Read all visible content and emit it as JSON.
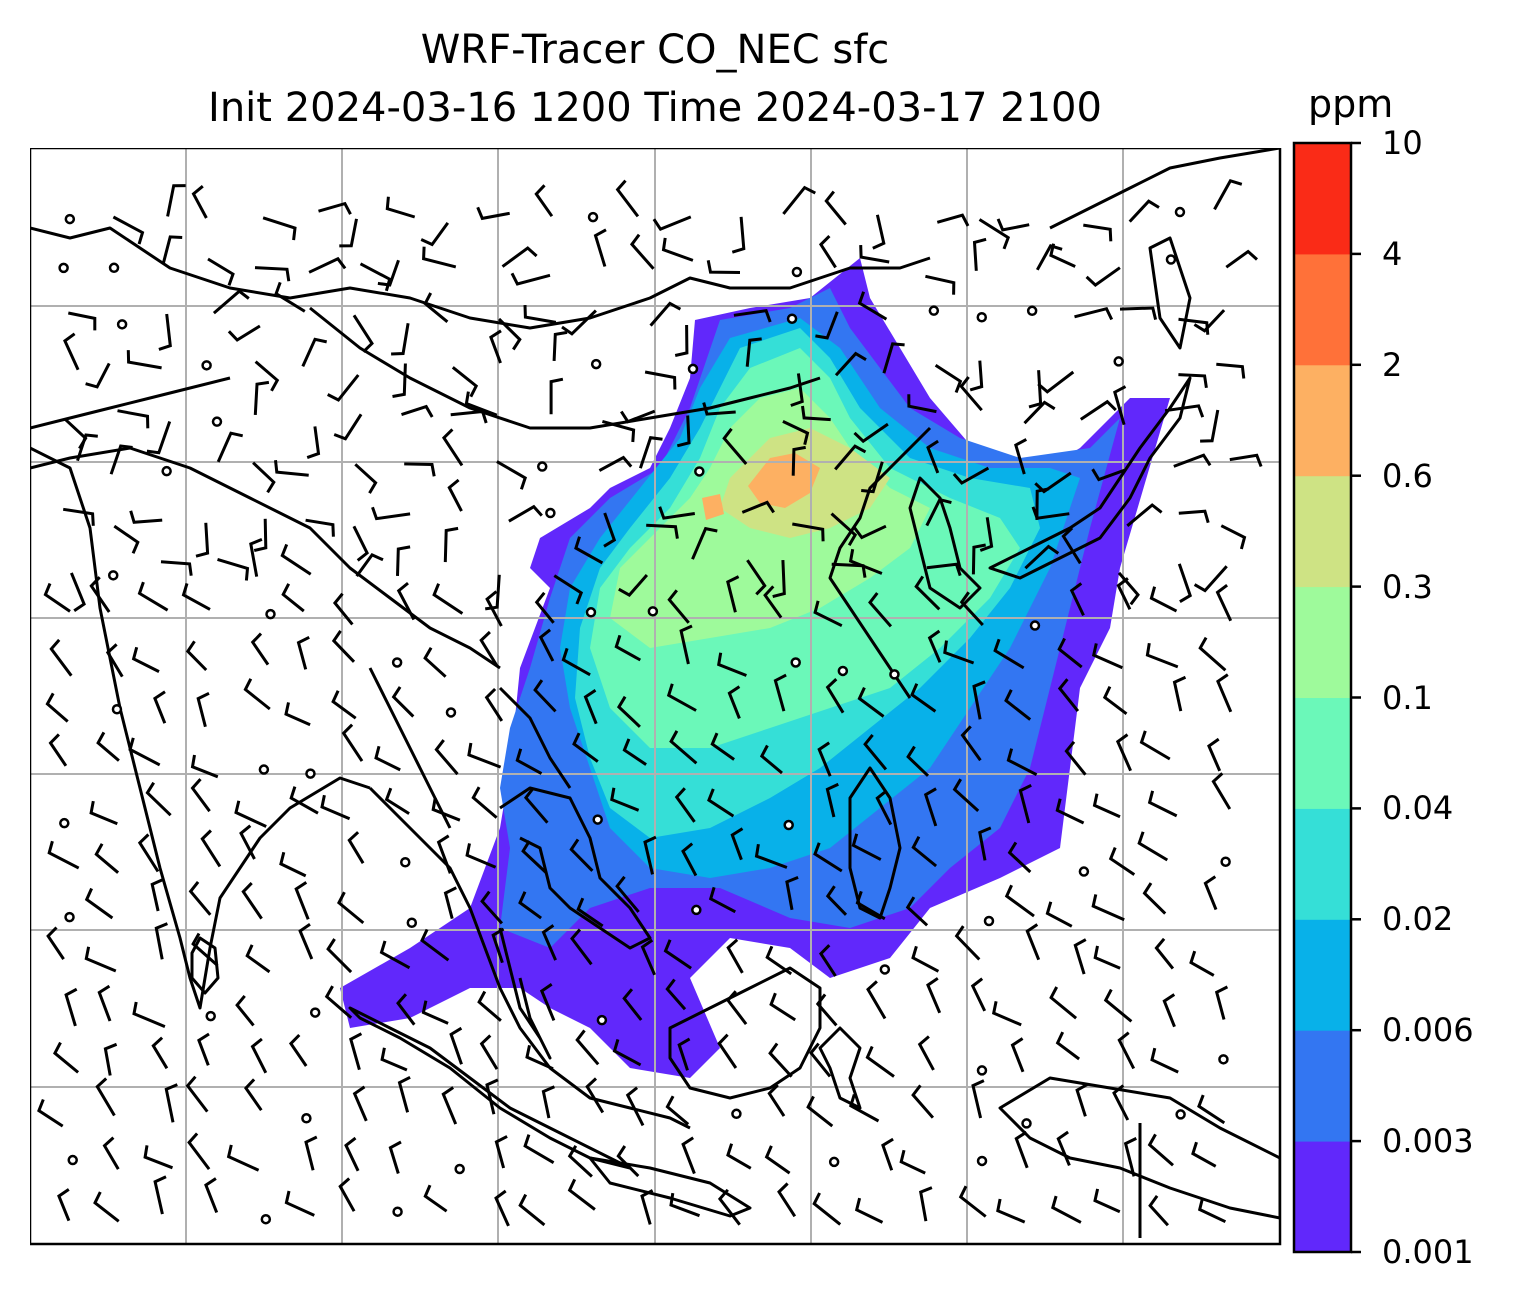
{
  "title": {
    "line1": "WRF-Tracer CO_NEC sfc",
    "line2": "Init 2024-03-16 1200 Time 2024-03-17 2100"
  },
  "colorbar": {
    "unit": "ppm",
    "levels": [
      "0.001",
      "0.003",
      "0.006",
      "0.02",
      "0.04",
      "0.1",
      "0.3",
      "0.6",
      "2",
      "4",
      "10"
    ],
    "colors": [
      "#6128fb",
      "#3376f2",
      "#08b1e9",
      "#35dfd7",
      "#6bf8b9",
      "#9efa9b",
      "#cee384",
      "#fdb062",
      "#ff7139",
      "#fa2b17"
    ]
  },
  "map": {
    "land_outline_color": "#000000",
    "gridline_color": "#b0b0b0",
    "barb_color": "#000000"
  }
}
